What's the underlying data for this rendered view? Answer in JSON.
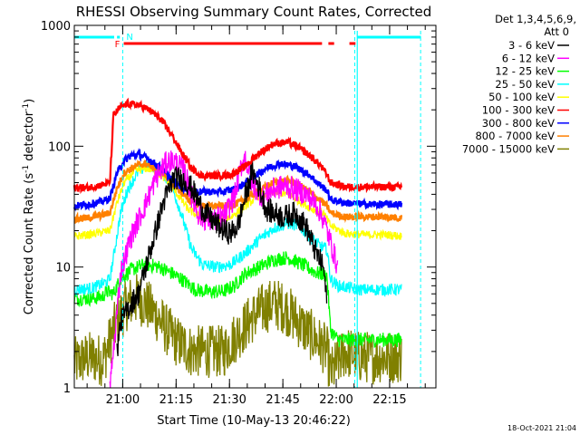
{
  "chart_data": {
    "type": "line",
    "title": "RHESSI Observing Summary Count Rates, Corrected",
    "xlabel": "Start Time (10-May-13 20:46:22)",
    "ylabel_parts": [
      "Corrected Count Rate (s",
      "-1",
      " detector",
      "-1",
      ")"
    ],
    "yscale": "log",
    "ylim": [
      1,
      1000
    ],
    "xlim_minutes_after_start": [
      0,
      101.6
    ],
    "x_ticks": [
      {
        "label": "21:00",
        "minutes": 13.6
      },
      {
        "label": "21:15",
        "minutes": 28.6
      },
      {
        "label": "21:30",
        "minutes": 43.6
      },
      {
        "label": "21:45",
        "minutes": 58.6
      },
      {
        "label": "22:00",
        "minutes": 73.6
      },
      {
        "label": "22:15",
        "minutes": 88.6
      }
    ],
    "y_ticks": [
      {
        "label": "1",
        "value": 1
      },
      {
        "label": "10",
        "value": 10
      },
      {
        "label": "100",
        "value": 100
      },
      {
        "label": "1000",
        "value": 1000
      }
    ],
    "legend": {
      "header1": "Det 1,3,4,5,6,9,",
      "header2": "Att 0",
      "placement": "right"
    },
    "series": [
      {
        "name": "3 - 6 keV",
        "color": "#000000",
        "points": [
          [
            12,
            2
          ],
          [
            13,
            3.5
          ],
          [
            16,
            5
          ],
          [
            18,
            6
          ],
          [
            22,
            16
          ],
          [
            25,
            34
          ],
          [
            28,
            55
          ],
          [
            31,
            52
          ],
          [
            33,
            45
          ],
          [
            36,
            30
          ],
          [
            39,
            24
          ],
          [
            42,
            20
          ],
          [
            44,
            19
          ],
          [
            46,
            22
          ],
          [
            48,
            38
          ],
          [
            50,
            62
          ],
          [
            52,
            45
          ],
          [
            54,
            30
          ],
          [
            56,
            28
          ],
          [
            59,
            26
          ],
          [
            62,
            28
          ],
          [
            65,
            22
          ],
          [
            68,
            13
          ],
          [
            70,
            10
          ],
          [
            71,
            5
          ]
        ]
      },
      {
        "name": "6 - 12 keV",
        "color": "#ff00ff",
        "points": [
          [
            10,
            1
          ],
          [
            11,
            2
          ],
          [
            13,
            9
          ],
          [
            16,
            18
          ],
          [
            20,
            33
          ],
          [
            23,
            55
          ],
          [
            26,
            74
          ],
          [
            28,
            76
          ],
          [
            31,
            62
          ],
          [
            33,
            38
          ],
          [
            35,
            27
          ],
          [
            38,
            24
          ],
          [
            42,
            26
          ],
          [
            45,
            38
          ],
          [
            47,
            70
          ],
          [
            48,
            82
          ],
          [
            50,
            48
          ],
          [
            53,
            38
          ],
          [
            56,
            44
          ],
          [
            59,
            47
          ],
          [
            62,
            44
          ],
          [
            65,
            40
          ],
          [
            68,
            33
          ],
          [
            70,
            25
          ],
          [
            72,
            16
          ],
          [
            74,
            10
          ]
        ]
      },
      {
        "name": "12 - 25 keV",
        "color": "#00ff00",
        "points": [
          [
            0,
            5.5
          ],
          [
            5,
            5.5
          ],
          [
            8,
            5.7
          ],
          [
            9,
            6.3
          ],
          [
            11,
            6
          ],
          [
            13,
            8
          ],
          [
            16,
            9.5
          ],
          [
            20,
            10.5
          ],
          [
            24,
            10
          ],
          [
            27,
            9
          ],
          [
            30,
            8
          ],
          [
            34,
            6.5
          ],
          [
            38,
            6.2
          ],
          [
            42,
            6.3
          ],
          [
            45,
            7
          ],
          [
            48,
            8.8
          ],
          [
            52,
            10
          ],
          [
            56,
            11.5
          ],
          [
            60,
            12
          ],
          [
            64,
            10.5
          ],
          [
            68,
            9
          ],
          [
            71,
            8.5
          ],
          [
            72,
            3
          ],
          [
            74,
            2.5
          ],
          [
            80,
            2.5
          ],
          [
            88,
            2.5
          ],
          [
            92,
            2.5
          ]
        ]
      },
      {
        "name": "25 - 50 keV",
        "color": "#00ffff",
        "points": [
          [
            0,
            6.5
          ],
          [
            5,
            6.7
          ],
          [
            9,
            7.5
          ],
          [
            10,
            8
          ],
          [
            11,
            12
          ],
          [
            13,
            28
          ],
          [
            15,
            44
          ],
          [
            18,
            62
          ],
          [
            21,
            70
          ],
          [
            24,
            64
          ],
          [
            27,
            50
          ],
          [
            30,
            28
          ],
          [
            33,
            14
          ],
          [
            36,
            10.5
          ],
          [
            40,
            10
          ],
          [
            44,
            10.5
          ],
          [
            48,
            13
          ],
          [
            52,
            17
          ],
          [
            56,
            21
          ],
          [
            60,
            23
          ],
          [
            63,
            22
          ],
          [
            66,
            18
          ],
          [
            69,
            15
          ],
          [
            71,
            14
          ],
          [
            72,
            8
          ],
          [
            74,
            7
          ],
          [
            80,
            6.5
          ],
          [
            88,
            6.5
          ],
          [
            92,
            6.5
          ]
        ]
      },
      {
        "name": "50 - 100 keV",
        "color": "#ffff00",
        "points": [
          [
            0,
            18
          ],
          [
            4,
            18.5
          ],
          [
            8,
            19.5
          ],
          [
            10,
            20
          ],
          [
            12,
            34
          ],
          [
            14,
            50
          ],
          [
            17,
            62
          ],
          [
            20,
            66
          ],
          [
            23,
            62
          ],
          [
            26,
            52
          ],
          [
            29,
            40
          ],
          [
            32,
            30
          ],
          [
            36,
            25
          ],
          [
            40,
            25
          ],
          [
            44,
            26
          ],
          [
            48,
            32
          ],
          [
            52,
            39
          ],
          [
            56,
            42
          ],
          [
            60,
            40
          ],
          [
            64,
            34
          ],
          [
            67,
            30
          ],
          [
            70,
            28
          ],
          [
            72,
            22
          ],
          [
            76,
            19
          ],
          [
            82,
            18.5
          ],
          [
            88,
            18.5
          ],
          [
            92,
            18
          ]
        ]
      },
      {
        "name": "100 - 300 keV",
        "color": "#ff0000",
        "points": [
          [
            0,
            45
          ],
          [
            4,
            45.5
          ],
          [
            8,
            48
          ],
          [
            10,
            50
          ],
          [
            11,
            180
          ],
          [
            13,
            210
          ],
          [
            15,
            225
          ],
          [
            18,
            220
          ],
          [
            21,
            200
          ],
          [
            24,
            170
          ],
          [
            27,
            130
          ],
          [
            30,
            90
          ],
          [
            33,
            65
          ],
          [
            36,
            57
          ],
          [
            40,
            57
          ],
          [
            44,
            58
          ],
          [
            48,
            68
          ],
          [
            52,
            88
          ],
          [
            56,
            105
          ],
          [
            60,
            108
          ],
          [
            63,
            98
          ],
          [
            66,
            84
          ],
          [
            69,
            70
          ],
          [
            71,
            58
          ],
          [
            72,
            50
          ],
          [
            76,
            46
          ],
          [
            82,
            46
          ],
          [
            88,
            46
          ],
          [
            92,
            46
          ]
        ]
      },
      {
        "name": "300 - 800 keV",
        "color": "#0000ff",
        "points": [
          [
            0,
            32
          ],
          [
            4,
            33
          ],
          [
            8,
            35
          ],
          [
            10,
            37
          ],
          [
            12,
            60
          ],
          [
            14,
            76
          ],
          [
            16,
            84
          ],
          [
            18,
            86
          ],
          [
            21,
            78
          ],
          [
            24,
            67
          ],
          [
            27,
            55
          ],
          [
            30,
            46
          ],
          [
            34,
            42
          ],
          [
            38,
            42
          ],
          [
            42,
            42
          ],
          [
            46,
            45
          ],
          [
            50,
            55
          ],
          [
            54,
            66
          ],
          [
            58,
            72
          ],
          [
            62,
            68
          ],
          [
            66,
            58
          ],
          [
            69,
            48
          ],
          [
            71,
            43
          ],
          [
            72,
            36
          ],
          [
            76,
            34
          ],
          [
            82,
            33
          ],
          [
            88,
            33
          ],
          [
            92,
            33
          ]
        ]
      },
      {
        "name": "800 - 7000 keV",
        "color": "#ff8000",
        "points": [
          [
            0,
            25
          ],
          [
            4,
            25.5
          ],
          [
            8,
            27
          ],
          [
            10,
            28
          ],
          [
            12,
            45
          ],
          [
            14,
            60
          ],
          [
            17,
            68
          ],
          [
            20,
            72
          ],
          [
            23,
            66
          ],
          [
            26,
            56
          ],
          [
            29,
            45
          ],
          [
            32,
            36
          ],
          [
            36,
            32
          ],
          [
            40,
            32
          ],
          [
            44,
            32
          ],
          [
            48,
            36
          ],
          [
            52,
            43
          ],
          [
            56,
            50
          ],
          [
            60,
            52
          ],
          [
            63,
            48
          ],
          [
            66,
            42
          ],
          [
            69,
            36
          ],
          [
            71,
            32
          ],
          [
            72,
            28
          ],
          [
            76,
            26
          ],
          [
            82,
            26
          ],
          [
            88,
            26
          ],
          [
            92,
            25.5
          ]
        ]
      },
      {
        "name": "7000 - 15000 keV",
        "color": "#808000",
        "points": [
          [
            0,
            1.6
          ],
          [
            4,
            1.8
          ],
          [
            8,
            1.7
          ],
          [
            9,
            2
          ],
          [
            11,
            3
          ],
          [
            13,
            4
          ],
          [
            15,
            5
          ],
          [
            18,
            5.5
          ],
          [
            20,
            5
          ],
          [
            23,
            4
          ],
          [
            26,
            3
          ],
          [
            29,
            2.4
          ],
          [
            33,
            2
          ],
          [
            38,
            2
          ],
          [
            42,
            2
          ],
          [
            44,
            2.4
          ],
          [
            47,
            3
          ],
          [
            50,
            3.8
          ],
          [
            53,
            4.5
          ],
          [
            56,
            5
          ],
          [
            59,
            4.6
          ],
          [
            62,
            3.8
          ],
          [
            65,
            3
          ],
          [
            68,
            2.5
          ],
          [
            71,
            2
          ],
          [
            72,
            1.3
          ],
          [
            76,
            2
          ],
          [
            80,
            1.8
          ],
          [
            86,
            1.8
          ],
          [
            92,
            1.8
          ]
        ]
      }
    ]
  },
  "flags": [
    {
      "letter": "N",
      "color": "#00ffff"
    },
    {
      "letter": "F",
      "color": "#ff0000"
    }
  ],
  "footer_date": "18-Oct-2021 21:04"
}
